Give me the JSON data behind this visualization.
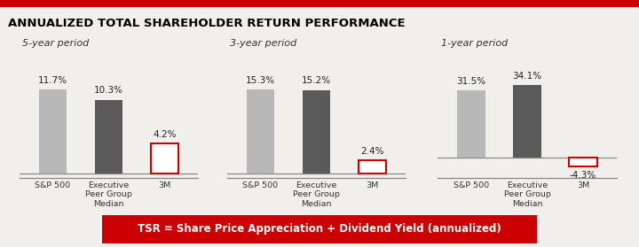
{
  "title": "ANNUALIZED TOTAL SHAREHOLDER RETURN PERFORMANCE",
  "title_color": "#000000",
  "title_fontsize": 9.5,
  "top_border_color": "#cc0000",
  "background_color": "#f0efeb",
  "groups": [
    {
      "period": "5-year period",
      "categories": [
        "S&P 500",
        "Executive\nPeer Group\nMedian",
        "3M"
      ],
      "values": [
        11.7,
        10.3,
        4.2
      ],
      "bar_colors": [
        "#b8b8b8",
        "#5a5a5a",
        "none"
      ],
      "value_labels": [
        "11.7%",
        "10.3%",
        "4.2%"
      ]
    },
    {
      "period": "3-year period",
      "categories": [
        "S&P 500",
        "Executive\nPeer Group\nMedian",
        "3M"
      ],
      "values": [
        15.3,
        15.2,
        2.4
      ],
      "bar_colors": [
        "#b8b8b8",
        "#5a5a5a",
        "none"
      ],
      "value_labels": [
        "15.3%",
        "15.2%",
        "2.4%"
      ]
    },
    {
      "period": "1-year period",
      "categories": [
        "S&P 500",
        "Executive\nPeer Group\nMedian",
        "3M"
      ],
      "values": [
        31.5,
        34.1,
        -4.3
      ],
      "bar_colors": [
        "#b8b8b8",
        "#5a5a5a",
        "none"
      ],
      "value_labels": [
        "31.5%",
        "34.1%",
        "-4.3%"
      ]
    }
  ],
  "footer_text": "TSR = Share Price Appreciation + Dividend Yield (annualized)",
  "footer_bg": "#cc0000",
  "footer_text_color": "#ffffff",
  "footer_fontsize": 8.5,
  "outline_bar_color": "#cc0000",
  "baseline_color": "#888888",
  "label_fontsize": 7.5,
  "xtick_fontsize": 6.8,
  "period_fontsize": 8.0
}
